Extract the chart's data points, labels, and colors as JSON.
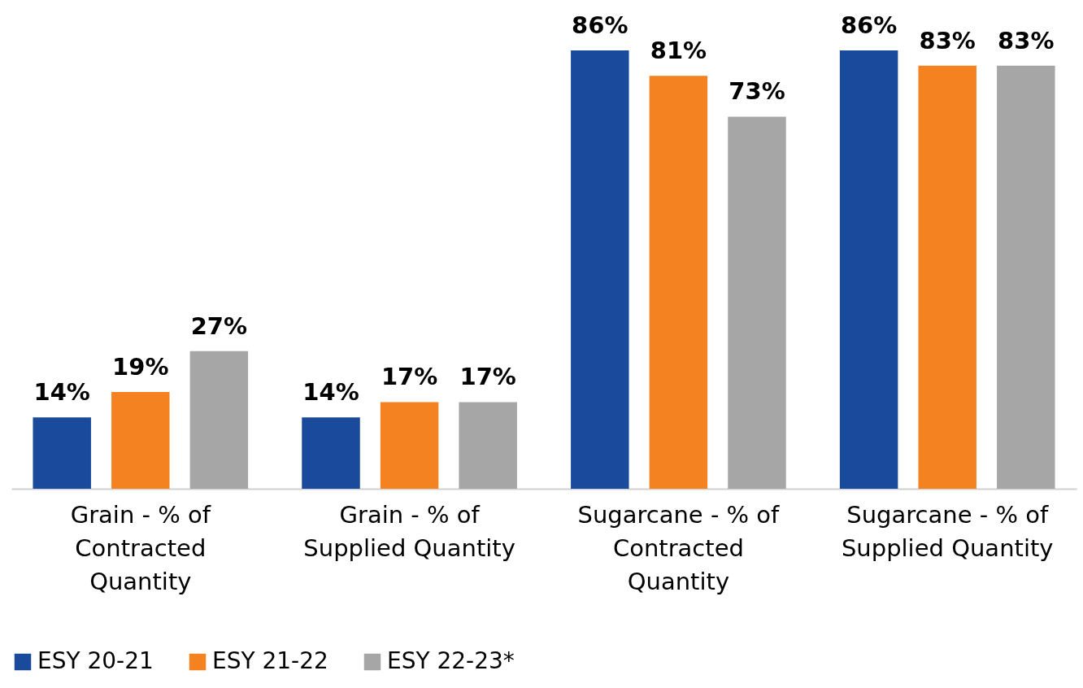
{
  "chart_data": {
    "type": "bar",
    "categories": [
      "Grain - % of Contracted Quantity",
      "Grain - % of Supplied Quantity",
      "Sugarcane - % of Contracted Quantity",
      "Sugarcane - % of Supplied Quantity"
    ],
    "series": [
      {
        "name": "ESY 20-21",
        "color": "#1a4a9c",
        "values": [
          14,
          14,
          86,
          86
        ],
        "value_labels": [
          "14%",
          "14%",
          "86%",
          "86%"
        ]
      },
      {
        "name": "ESY 21-22",
        "color": "#f58220",
        "values": [
          19,
          17,
          81,
          83
        ],
        "value_labels": [
          "19%",
          "17%",
          "81%",
          "83%"
        ]
      },
      {
        "name": "ESY 22-23*",
        "color": "#a6a6a6",
        "values": [
          27,
          17,
          73,
          83
        ],
        "value_labels": [
          "27%",
          "17%",
          "73%",
          "83%"
        ]
      }
    ],
    "legend": "bottom"
  }
}
